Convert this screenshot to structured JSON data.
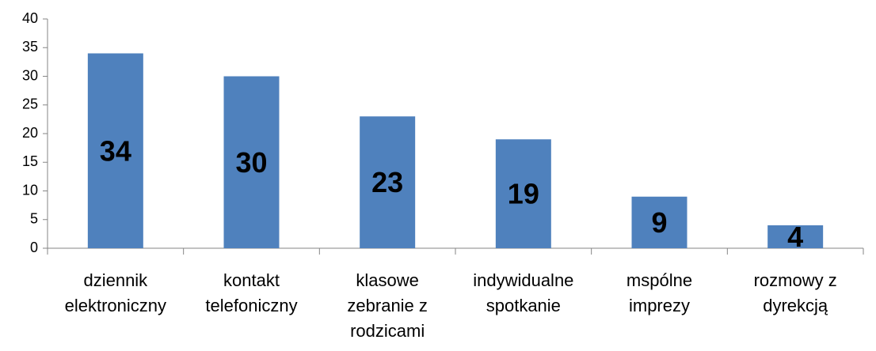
{
  "chart_data": {
    "type": "bar",
    "categories": [
      [
        "dziennik",
        "elektroniczny"
      ],
      [
        "kontakt",
        "telefoniczny"
      ],
      [
        "klasowe",
        "zebranie z",
        "rodzicami"
      ],
      [
        "indywidualne",
        "spotkanie"
      ],
      [
        "mspólne",
        "imprezy"
      ],
      [
        "rozmowy z",
        "dyrekcją"
      ]
    ],
    "values": [
      34,
      30,
      23,
      19,
      9,
      4
    ],
    "color": "#4f81bd",
    "ylim": [
      0,
      40
    ],
    "yticks": [
      0,
      5,
      10,
      15,
      20,
      25,
      30,
      35,
      40
    ],
    "grid": false
  }
}
